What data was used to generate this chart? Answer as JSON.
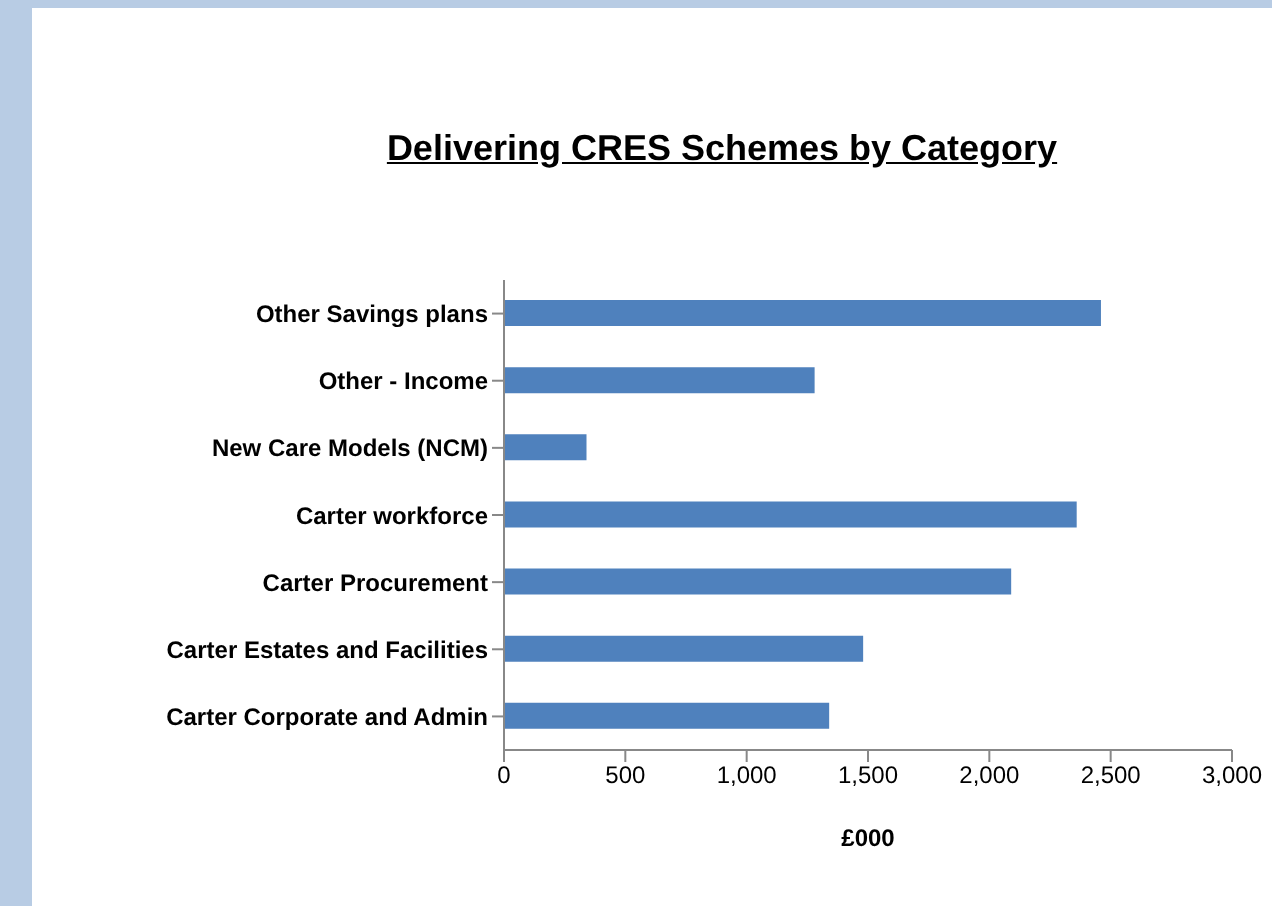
{
  "chart_data": {
    "type": "bar",
    "orientation": "horizontal",
    "title": "Delivering CRES Schemes by Category",
    "xlabel": "£000",
    "categories": [
      "Other Savings plans",
      "Other - Income",
      "New Care Models (NCM)",
      "Carter workforce",
      "Carter Procurement",
      "Carter Estates and Facilities",
      "Carter Corporate and Admin"
    ],
    "values": [
      2460,
      1280,
      340,
      2360,
      2090,
      1480,
      1340
    ],
    "color": "#4f81bd",
    "xlim": [
      0,
      3000
    ],
    "xticks": [
      {
        "value": 0,
        "label": "0"
      },
      {
        "value": 500,
        "label": "500"
      },
      {
        "value": 1000,
        "label": "1,000"
      },
      {
        "value": 1500,
        "label": "1,500"
      },
      {
        "value": 2000,
        "label": "2,000"
      },
      {
        "value": 2500,
        "label": "2,500"
      },
      {
        "value": 3000,
        "label": "3,000"
      }
    ],
    "grid": false,
    "legend": false
  }
}
